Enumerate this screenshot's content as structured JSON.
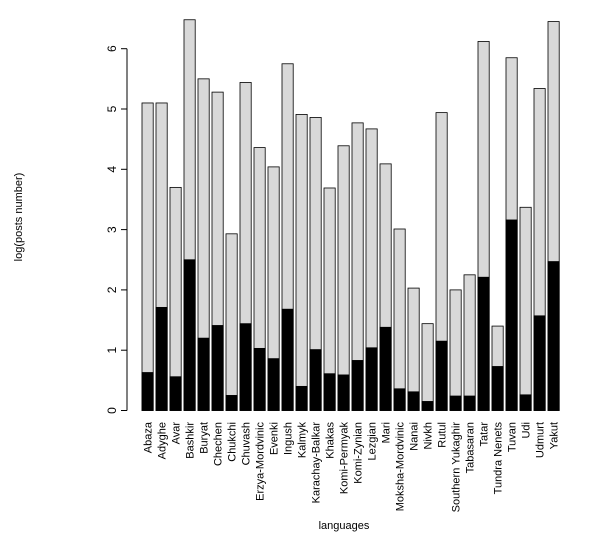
{
  "chart_data": {
    "type": "bar",
    "stacked": "overlay",
    "xlabel": "languages",
    "ylabel": "log(posts number)",
    "ylim": [
      0,
      6.6
    ],
    "yticks": [
      0,
      1,
      2,
      3,
      4,
      5,
      6
    ],
    "grid": false,
    "legend": "none",
    "colors": {
      "total": "#d9d9d9",
      "subset": "#000000",
      "border": "#000000"
    },
    "categories": [
      "Abaza",
      "Adyghe",
      "Avar",
      "Bashkir",
      "Buryat",
      "Chechen",
      "Chukchi",
      "Chuvash",
      "Erzya-Mordvinic",
      "Evenki",
      "Ingush",
      "Kalmyk",
      "Karachay-Balkar",
      "Khakas",
      "Komi-Permyak",
      "Komi-Zynian",
      "Lezgian",
      "Mari",
      "Moksha-Mordvinic",
      "Nanai",
      "Nivkh",
      "Rutul",
      "Southern Yukaghir",
      "Tabasaran",
      "Tatar",
      "Tundra Nenets",
      "Tuvan",
      "Udi",
      "Udmurt",
      "Yakut"
    ],
    "series": [
      {
        "values": [
          5.1,
          5.1,
          3.7,
          6.48,
          5.5,
          5.28,
          2.93,
          5.44,
          4.36,
          4.04,
          5.75,
          4.91,
          4.86,
          3.69,
          4.39,
          4.77,
          4.67,
          4.09,
          3.01,
          2.03,
          1.44,
          4.94,
          2.0,
          2.25,
          6.12,
          1.4,
          5.85,
          3.37,
          5.34,
          6.45
        ]
      },
      {
        "values": [
          0.63,
          1.71,
          0.56,
          2.5,
          1.2,
          1.41,
          0.25,
          1.44,
          1.03,
          0.86,
          1.68,
          0.4,
          1.01,
          0.61,
          0.59,
          0.83,
          1.04,
          1.38,
          0.36,
          0.31,
          0.15,
          1.15,
          0.24,
          0.24,
          2.21,
          0.73,
          3.16,
          0.26,
          1.57,
          2.47
        ]
      }
    ]
  }
}
